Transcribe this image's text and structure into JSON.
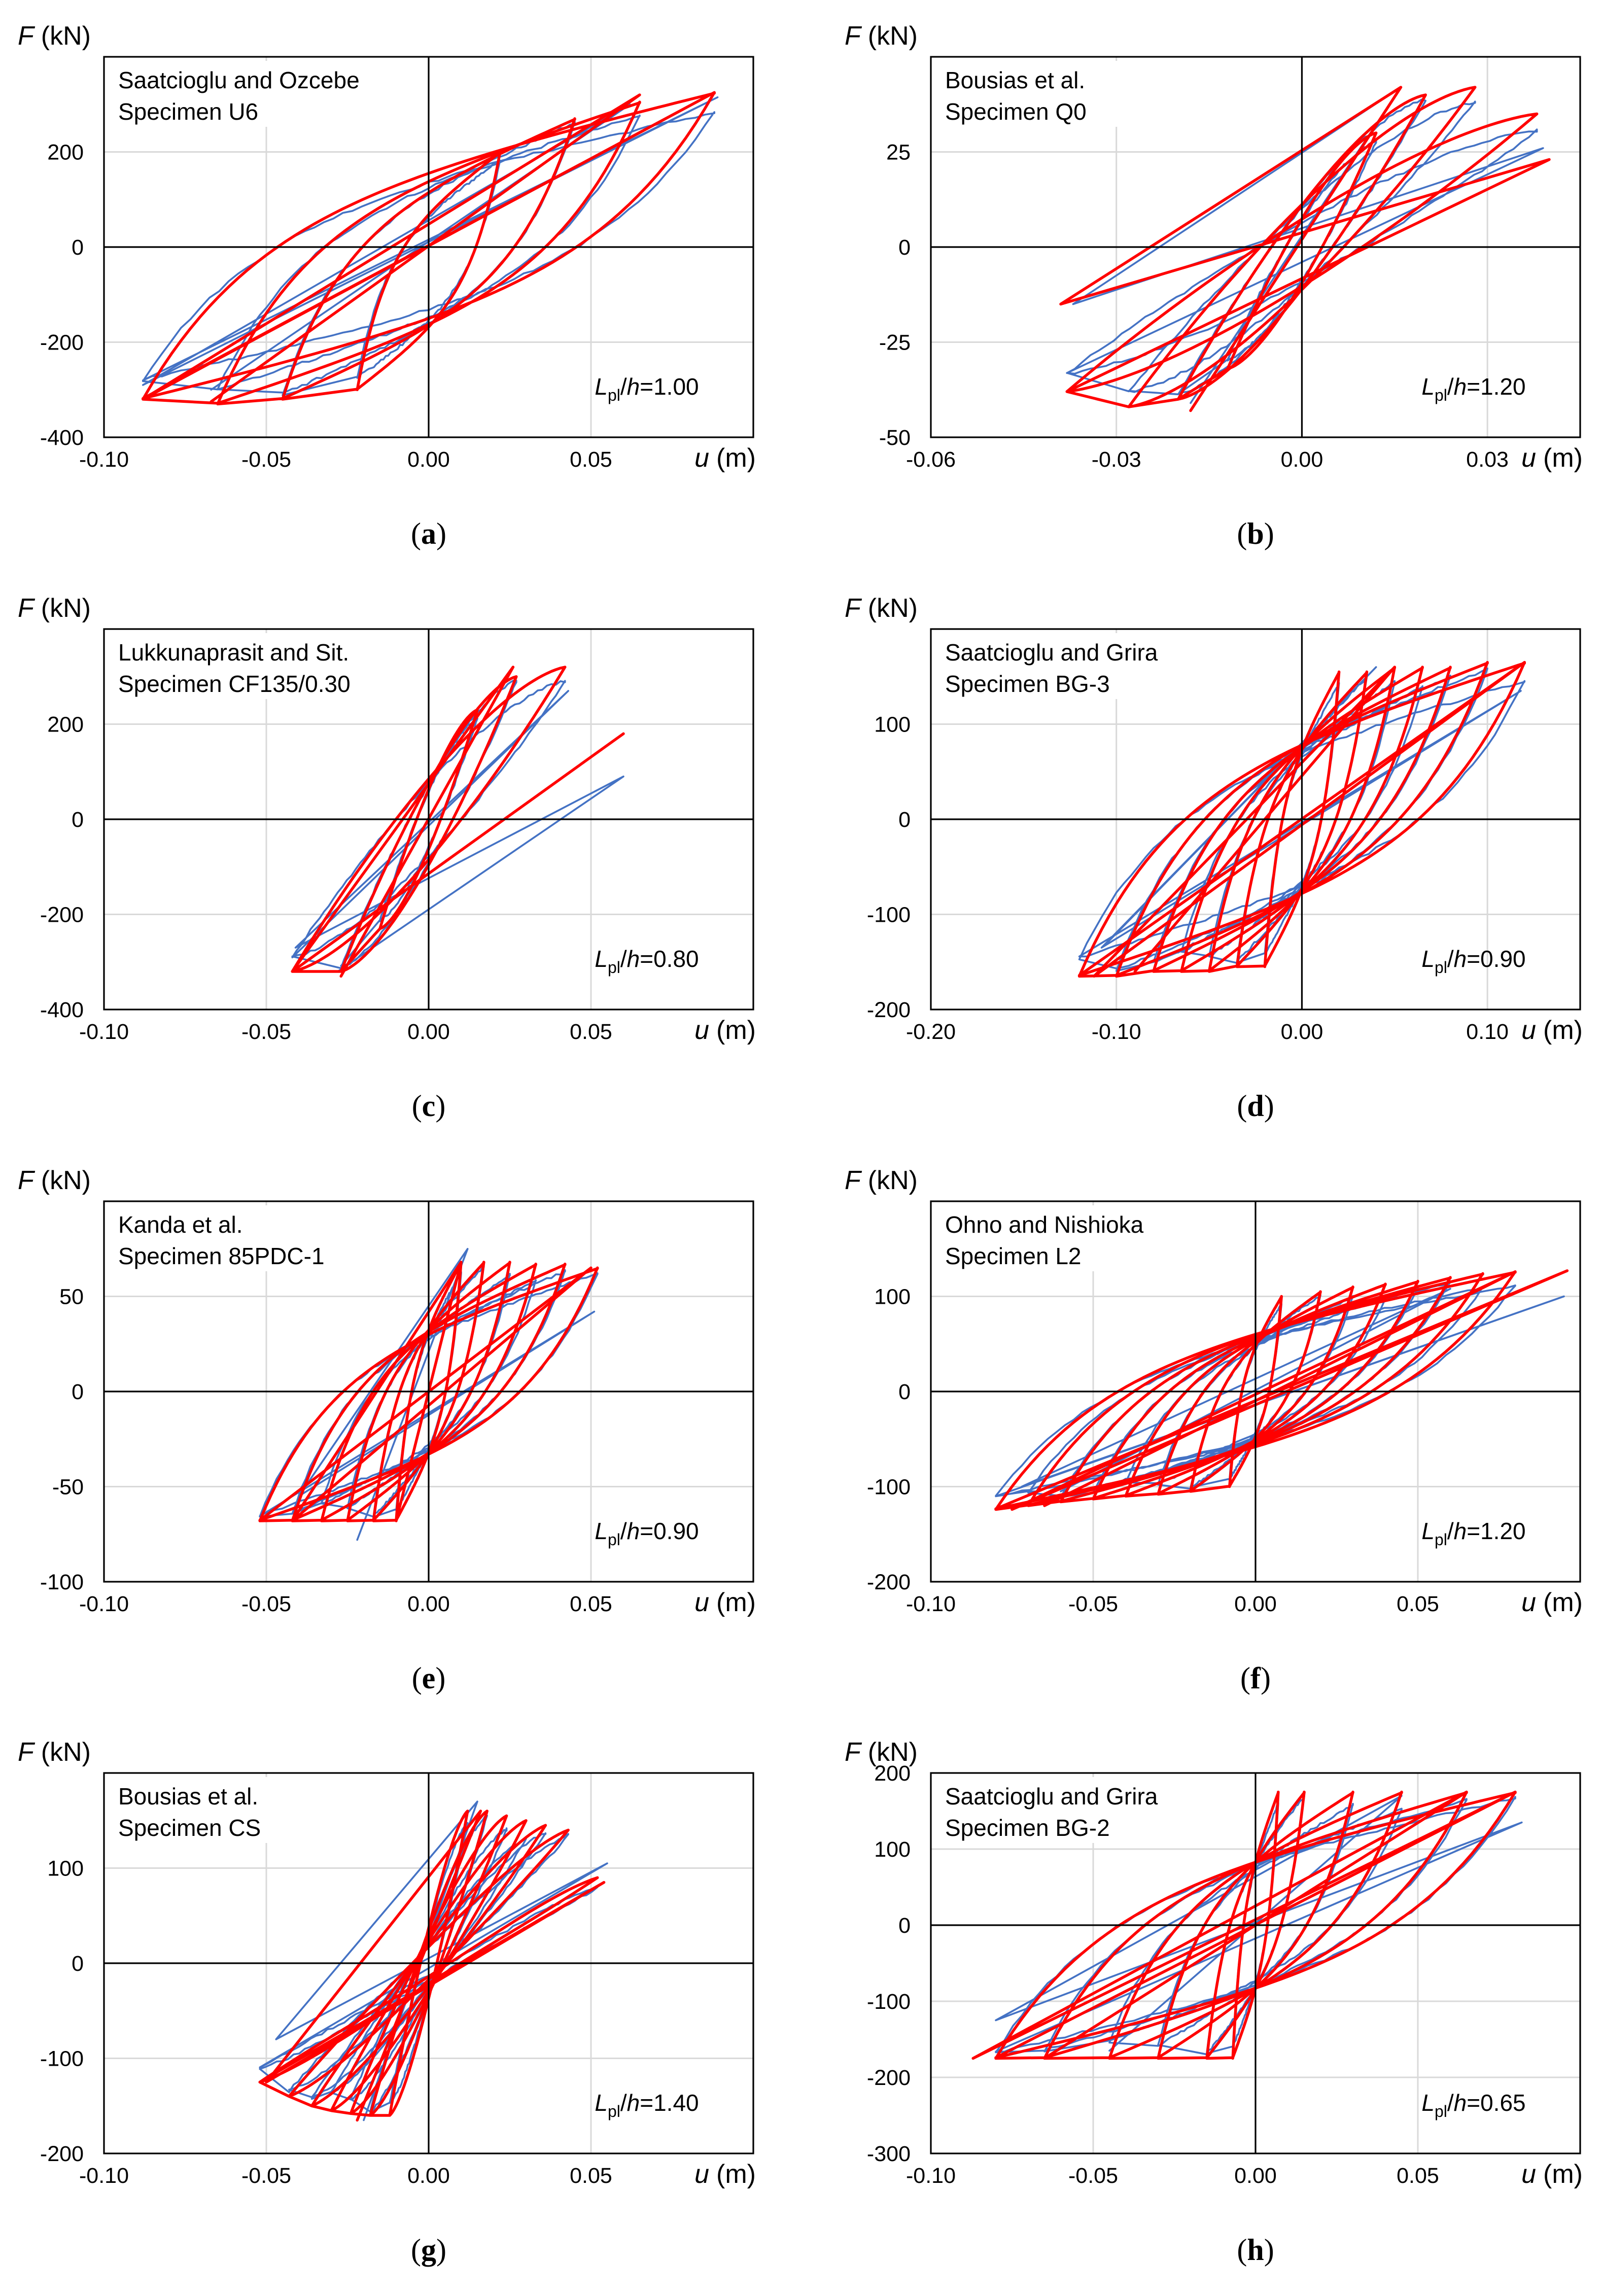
{
  "figure": {
    "x_symbol": "u",
    "x_unit": "(m)",
    "y_symbol": "F",
    "y_unit": "(kN)",
    "ratio_prefix": "L",
    "ratio_sub": "pl",
    "ratio_mid": "/",
    "ratio_h": "h",
    "colors": {
      "experimental": "#4472c4",
      "numerical": "#ff0000",
      "grid": "#d9d9d9",
      "axes": "#000000"
    }
  },
  "chart_data": [
    {
      "type": "line",
      "panel": "a",
      "annotation": [
        "Saatcioglu and Ozcebe",
        "Specimen U6"
      ],
      "ratio_value": "=1.00",
      "xlim": [
        -0.1,
        0.1
      ],
      "ylim": [
        -400,
        400
      ],
      "xticks": [
        -0.1,
        -0.05,
        0.0,
        0.05
      ],
      "xtick_labels": [
        "-0.10",
        "-0.05",
        "0.00",
        "0.05"
      ],
      "yticks": [
        -400,
        -200,
        0,
        200
      ],
      "ytick_labels": [
        "-400",
        "-200",
        "0",
        "200"
      ],
      "amplitudes": [
        0.022,
        0.045,
        0.065,
        0.088
      ],
      "fpos": [
        200,
        270,
        305,
        325
      ],
      "fneg": [
        -300,
        -320,
        -330,
        -320
      ],
      "fzero": 185,
      "kfrac": 0.3,
      "style": "wide",
      "series": [
        {
          "role": "experimental",
          "peaks": [
            [
              0.089,
              315
            ],
            [
              -0.088,
              -290
            ],
            [
              0.062,
              300
            ],
            [
              -0.067,
              -300
            ]
          ]
        },
        {
          "role": "numerical",
          "peaks": [
            [
              0.088,
              325
            ],
            [
              -0.088,
              -320
            ],
            [
              0.065,
              320
            ],
            [
              -0.067,
              -325
            ]
          ]
        }
      ]
    },
    {
      "type": "line",
      "panel": "b",
      "annotation": [
        "Bousias et al.",
        "Specimen Q0"
      ],
      "ratio_value": "=1.20",
      "xlim": [
        -0.06,
        0.045
      ],
      "ylim": [
        -50,
        50
      ],
      "xticks": [
        -0.06,
        -0.03,
        0.0,
        0.03
      ],
      "xtick_labels": [
        "-0.06",
        "-0.03",
        "0.00",
        "0.03"
      ],
      "yticks": [
        -50,
        -25,
        0,
        25
      ],
      "ytick_labels": [
        "-50",
        "-25",
        "0",
        "25"
      ],
      "amplitudes": [
        0.012,
        0.02,
        0.028,
        0.038
      ],
      "fpos": [
        30,
        40,
        42,
        35
      ],
      "fneg": [
        -32,
        -40,
        -42,
        -38
      ],
      "fzero": 6,
      "kfrac": 1.2,
      "style": "slim",
      "series": [
        {
          "role": "experimental",
          "peaks": [
            [
              0.039,
              26
            ],
            [
              -0.037,
              -15
            ],
            [
              0.016,
              42
            ],
            [
              -0.018,
              -41
            ]
          ]
        },
        {
          "role": "numerical",
          "peaks": [
            [
              0.04,
              23
            ],
            [
              -0.039,
              -15
            ],
            [
              0.016,
              42
            ],
            [
              -0.018,
              -43
            ]
          ]
        }
      ]
    },
    {
      "type": "line",
      "panel": "c",
      "annotation": [
        "Lukkunaprasit and Sit.",
        "Specimen CF135/0.30"
      ],
      "ratio_value": "=0.80",
      "xlim": [
        -0.1,
        0.1
      ],
      "ylim": [
        -400,
        400
      ],
      "xticks": [
        -0.1,
        -0.05,
        0.0,
        0.05
      ],
      "xtick_labels": [
        "-0.10",
        "-0.05",
        "0.00",
        "0.05"
      ],
      "yticks": [
        -400,
        -200,
        0,
        200
      ],
      "ytick_labels": [
        "-400",
        "-200",
        "0",
        "200"
      ],
      "amplitudes": [
        0.015,
        0.027,
        0.042
      ],
      "fpos": [
        230,
        300,
        320
      ],
      "fneg": [
        -230,
        -320,
        -320
      ],
      "fzero": 40,
      "kfrac": 1.3,
      "style": "slim",
      "series": [
        {
          "role": "experimental",
          "peaks": [
            [
              0.043,
              270
            ],
            [
              -0.041,
              -270
            ],
            [
              0.06,
              90
            ],
            [
              -0.028,
              -320
            ]
          ]
        },
        {
          "role": "numerical",
          "peaks": [
            [
              0.06,
              180
            ],
            [
              -0.042,
              -320
            ],
            [
              0.026,
              320
            ],
            [
              -0.027,
              -330
            ]
          ]
        }
      ]
    },
    {
      "type": "line",
      "panel": "d",
      "annotation": [
        "Saatcioglu and Grira",
        "Specimen BG-3"
      ],
      "ratio_value": "=0.90",
      "xlim": [
        -0.2,
        0.15
      ],
      "ylim": [
        -200,
        200
      ],
      "xticks": [
        -0.2,
        -0.1,
        0.0,
        0.1
      ],
      "xtick_labels": [
        "-0.20",
        "-0.10",
        "0.00",
        "0.10"
      ],
      "yticks": [
        -200,
        -100,
        0,
        100
      ],
      "ytick_labels": [
        "-200",
        "-100",
        "0",
        "100"
      ],
      "amplitudes": [
        0.02,
        0.035,
        0.05,
        0.065,
        0.08,
        0.1,
        0.12
      ],
      "fpos": [
        155,
        155,
        160,
        160,
        160,
        165,
        165
      ],
      "fneg": [
        -155,
        -155,
        -160,
        -160,
        -160,
        -165,
        -165
      ],
      "fzero": 55,
      "kfrac": 0.8,
      "style": "wide",
      "series": [
        {
          "role": "experimental",
          "peaks": [
            [
              0.118,
              135
            ],
            [
              -0.108,
              -135
            ],
            [
              0.04,
              160
            ],
            [
              -0.105,
              -130
            ]
          ]
        },
        {
          "role": "numerical",
          "peaks": [
            [
              0.12,
              165
            ],
            [
              -0.112,
              -165
            ],
            [
              0.05,
              160
            ],
            [
              -0.09,
              -160
            ]
          ]
        }
      ]
    },
    {
      "type": "line",
      "panel": "e",
      "annotation": [
        "Kanda et al.",
        "Specimen 85PDC-1"
      ],
      "ratio_value": "=0.90",
      "xlim": [
        -0.1,
        0.1
      ],
      "ylim": [
        -100,
        100
      ],
      "xticks": [
        -0.1,
        -0.05,
        0.0,
        0.05
      ],
      "xtick_labels": [
        "-0.10",
        "-0.05",
        "0.00",
        "0.05"
      ],
      "yticks": [
        -100,
        -50,
        0,
        50
      ],
      "ytick_labels": [
        "-100",
        "-50",
        "0",
        "50"
      ],
      "amplitudes": [
        0.01,
        0.017,
        0.025,
        0.033,
        0.042,
        0.052
      ],
      "fpos": [
        68,
        68,
        68,
        67,
        67,
        65
      ],
      "fneg": [
        -68,
        -68,
        -68,
        -68,
        -68,
        -68
      ],
      "fzero": 20,
      "kfrac": 1.0,
      "style": "wide",
      "series": [
        {
          "role": "experimental",
          "peaks": [
            [
              0.051,
              42
            ],
            [
              -0.04,
              -55
            ],
            [
              0.012,
              75
            ],
            [
              -0.022,
              -78
            ]
          ]
        },
        {
          "role": "numerical",
          "peaks": [
            [
              0.05,
              65
            ],
            [
              -0.042,
              -68
            ],
            [
              0.01,
              68
            ],
            [
              -0.01,
              -68
            ]
          ]
        }
      ]
    },
    {
      "type": "line",
      "panel": "f",
      "annotation": [
        "Ohno and Nishioka",
        "Specimen L2"
      ],
      "ratio_value": "=1.20",
      "xlim": [
        -0.1,
        0.1
      ],
      "ylim": [
        -200,
        200
      ],
      "xticks": [
        -0.1,
        -0.05,
        0.0,
        0.05
      ],
      "xtick_labels": [
        "-0.10",
        "-0.05",
        "0.00",
        "0.05"
      ],
      "yticks": [
        -200,
        -100,
        0,
        100
      ],
      "ytick_labels": [
        "-200",
        "-100",
        "0",
        "100"
      ],
      "amplitudes": [
        0.008,
        0.02,
        0.03,
        0.04,
        0.05,
        0.06,
        0.07,
        0.08
      ],
      "fpos": [
        100,
        105,
        110,
        113,
        116,
        120,
        124,
        126
      ],
      "fneg": [
        -100,
        -105,
        -108,
        -110,
        -113,
        -116,
        -120,
        -124
      ],
      "fzero": 75,
      "kfrac": 0.9,
      "style": "wide",
      "series": [
        {
          "role": "experimental",
          "peaks": [
            [
              0.095,
              100
            ],
            [
              -0.072,
              -100
            ],
            [
              0.06,
              108
            ],
            [
              -0.06,
              -105
            ]
          ]
        },
        {
          "role": "numerical",
          "peaks": [
            [
              0.096,
              127
            ],
            [
              -0.075,
              -124
            ],
            [
              0.08,
              126
            ],
            [
              -0.065,
              -120
            ]
          ]
        }
      ]
    },
    {
      "type": "line",
      "panel": "g",
      "annotation": [
        "Bousias et al.",
        "Specimen CS"
      ],
      "ratio_value": "=1.40",
      "xlim": [
        -0.1,
        0.1
      ],
      "ylim": [
        -200,
        200
      ],
      "xticks": [
        -0.1,
        -0.05,
        0.0,
        0.05
      ],
      "xtick_labels": [
        "-0.10",
        "-0.05",
        "0.00",
        "0.05"
      ],
      "yticks": [
        -200,
        -100,
        0,
        100
      ],
      "ytick_labels": [
        "-200",
        "-100",
        "0",
        "100"
      ],
      "amplitudes": [
        0.012,
        0.018,
        0.024,
        0.03,
        0.036,
        0.043,
        0.052
      ],
      "fpos": [
        160,
        160,
        155,
        150,
        145,
        140,
        90
      ],
      "fneg": [
        -160,
        -160,
        -158,
        -155,
        -150,
        -140,
        -125
      ],
      "fzero": 55,
      "kfrac": 1.3,
      "style": "slim",
      "series": [
        {
          "role": "experimental",
          "peaks": [
            [
              0.055,
              105
            ],
            [
              -0.047,
              -80
            ],
            [
              0.015,
              170
            ],
            [
              -0.02,
              -165
            ]
          ]
        },
        {
          "role": "numerical",
          "peaks": [
            [
              0.054,
              85
            ],
            [
              -0.05,
              -125
            ],
            [
              0.016,
              160
            ],
            [
              -0.022,
              -165
            ]
          ]
        }
      ]
    },
    {
      "type": "line",
      "panel": "h",
      "annotation": [
        "Saatcioglu and Grira",
        "Specimen BG-2"
      ],
      "ratio_value": "=0.65",
      "xlim": [
        -0.1,
        0.1
      ],
      "ylim": [
        -300,
        200
      ],
      "xticks": [
        -0.1,
        -0.05,
        0.0,
        0.05
      ],
      "xtick_labels": [
        "-0.10",
        "-0.05",
        "0.00",
        "0.05"
      ],
      "yticks": [
        -300,
        -200,
        -100,
        0,
        100,
        200
      ],
      "ytick_labels": [
        "-300",
        "-200",
        "-100",
        "0",
        "100",
        "200"
      ],
      "amplitudes": [
        0.007,
        0.015,
        0.03,
        0.045,
        0.065,
        0.08
      ],
      "fpos": [
        175,
        175,
        175,
        175,
        175,
        175
      ],
      "fneg": [
        -175,
        -175,
        -175,
        -175,
        -175,
        -175
      ],
      "fzero": 60,
      "kfrac": 1.0,
      "style": "wide",
      "series": [
        {
          "role": "experimental",
          "peaks": [
            [
              0.082,
              135
            ],
            [
              -0.08,
              -125
            ],
            [
              0.045,
              170
            ],
            [
              -0.045,
              -165
            ]
          ]
        },
        {
          "role": "numerical",
          "peaks": [
            [
              0.08,
              175
            ],
            [
              -0.087,
              -175
            ],
            [
              0.065,
              175
            ],
            [
              -0.065,
              -175
            ]
          ]
        }
      ]
    }
  ]
}
